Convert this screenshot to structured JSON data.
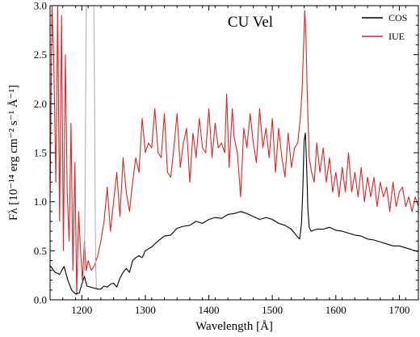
{
  "chart_data": {
    "type": "line",
    "title": "CU Vel",
    "xlabel": "Wavelength [Å]",
    "ylabel": "Fλ [10⁻¹⁴ erg cm⁻² s⁻¹ Å⁻¹]",
    "xlim": [
      1150,
      1730
    ],
    "ylim": [
      0.0,
      3.0
    ],
    "x_ticks": [
      1200,
      1300,
      1400,
      1500,
      1600,
      1700
    ],
    "y_ticks": [
      0.0,
      0.5,
      1.0,
      1.5,
      2.0,
      2.5,
      3.0
    ],
    "x_tick_labels": [
      "1200",
      "1300",
      "1400",
      "1500",
      "1600",
      "1700"
    ],
    "y_tick_labels": [
      "0.0",
      "0.5",
      "1.0",
      "1.5",
      "2.0",
      "2.5",
      "3.0"
    ],
    "legend": {
      "placement": "top-right",
      "entries": [
        "COS",
        "IUE"
      ]
    },
    "grid": false,
    "series": [
      {
        "name": "COS",
        "color": "#000000",
        "x": [
          1150,
          1158,
          1165,
          1172,
          1178,
          1184,
          1190,
          1196,
          1200,
          1204,
          1208,
          1225,
          1230,
          1235,
          1240,
          1245,
          1250,
          1255,
          1260,
          1265,
          1270,
          1275,
          1280,
          1285,
          1290,
          1295,
          1300,
          1310,
          1320,
          1330,
          1340,
          1350,
          1360,
          1370,
          1380,
          1390,
          1400,
          1410,
          1420,
          1430,
          1440,
          1450,
          1460,
          1470,
          1480,
          1490,
          1500,
          1510,
          1520,
          1530,
          1535,
          1540,
          1543,
          1546,
          1548,
          1550,
          1552,
          1554,
          1556,
          1558,
          1561,
          1565,
          1570,
          1580,
          1590,
          1600,
          1610,
          1620,
          1630,
          1640,
          1650,
          1660,
          1670,
          1680,
          1690,
          1700,
          1710,
          1720,
          1730
        ],
        "y": [
          0.35,
          0.28,
          0.26,
          0.34,
          0.2,
          0.1,
          0.06,
          0.07,
          0.16,
          0.24,
          0.14,
          0.11,
          0.11,
          0.14,
          0.13,
          0.16,
          0.17,
          0.13,
          0.22,
          0.28,
          0.32,
          0.28,
          0.4,
          0.43,
          0.45,
          0.43,
          0.5,
          0.54,
          0.6,
          0.65,
          0.66,
          0.73,
          0.75,
          0.76,
          0.8,
          0.78,
          0.82,
          0.84,
          0.83,
          0.87,
          0.88,
          0.9,
          0.88,
          0.85,
          0.82,
          0.84,
          0.82,
          0.78,
          0.76,
          0.72,
          0.68,
          0.64,
          0.62,
          0.78,
          1.12,
          1.62,
          1.7,
          1.38,
          0.92,
          0.74,
          0.7,
          0.71,
          0.72,
          0.72,
          0.74,
          0.71,
          0.7,
          0.68,
          0.66,
          0.65,
          0.62,
          0.61,
          0.59,
          0.57,
          0.55,
          0.55,
          0.53,
          0.51,
          0.49
        ]
      },
      {
        "name": "IUE",
        "color": "#d62728",
        "x": [
          1150,
          1153,
          1156,
          1159,
          1162,
          1165,
          1168,
          1171,
          1174,
          1177,
          1180,
          1183,
          1186,
          1189,
          1192,
          1195,
          1198,
          1201,
          1204,
          1207,
          1210,
          1215,
          1220,
          1225,
          1230,
          1235,
          1240,
          1245,
          1250,
          1255,
          1260,
          1265,
          1270,
          1275,
          1280,
          1285,
          1290,
          1295,
          1300,
          1305,
          1310,
          1315,
          1320,
          1325,
          1330,
          1335,
          1340,
          1345,
          1350,
          1355,
          1360,
          1365,
          1370,
          1375,
          1380,
          1385,
          1390,
          1395,
          1400,
          1405,
          1410,
          1415,
          1420,
          1425,
          1428,
          1432,
          1437,
          1440,
          1445,
          1450,
          1455,
          1460,
          1465,
          1470,
          1475,
          1480,
          1485,
          1490,
          1495,
          1500,
          1505,
          1510,
          1515,
          1520,
          1525,
          1530,
          1535,
          1540,
          1544,
          1547,
          1549,
          1551,
          1553,
          1555,
          1558,
          1562,
          1566,
          1570,
          1575,
          1580,
          1585,
          1590,
          1595,
          1600,
          1605,
          1610,
          1615,
          1620,
          1625,
          1630,
          1635,
          1640,
          1645,
          1650,
          1655,
          1660,
          1665,
          1670,
          1675,
          1680,
          1685,
          1690,
          1695,
          1700,
          1705,
          1710,
          1715,
          1720,
          1725,
          1730
        ],
        "y": [
          1.0,
          3.0,
          2.4,
          1.2,
          3.0,
          0.8,
          2.9,
          0.5,
          2.5,
          1.1,
          0.6,
          1.8,
          0.3,
          1.4,
          0.05,
          0.9,
          0.5,
          0.2,
          0.6,
          0.3,
          0.4,
          0.3,
          0.35,
          0.45,
          0.6,
          0.8,
          1.15,
          0.7,
          1.0,
          1.3,
          0.85,
          1.45,
          1.1,
          0.9,
          1.2,
          1.45,
          1.3,
          1.85,
          1.5,
          1.6,
          1.55,
          1.95,
          1.5,
          1.45,
          1.9,
          1.3,
          1.25,
          1.55,
          1.9,
          1.35,
          1.6,
          1.75,
          1.2,
          1.7,
          1.45,
          1.85,
          1.55,
          1.5,
          1.95,
          1.45,
          1.8,
          1.55,
          1.6,
          1.5,
          2.1,
          1.35,
          1.95,
          1.65,
          1.5,
          1.05,
          1.75,
          1.55,
          1.9,
          1.6,
          1.4,
          1.95,
          1.55,
          1.75,
          1.45,
          1.85,
          1.3,
          1.75,
          1.45,
          1.25,
          1.7,
          1.35,
          1.55,
          1.6,
          1.85,
          2.15,
          2.55,
          2.95,
          2.7,
          2.1,
          1.45,
          1.3,
          1.2,
          1.6,
          1.3,
          1.55,
          1.2,
          1.45,
          1.1,
          1.3,
          1.05,
          1.35,
          1.1,
          1.5,
          1.1,
          1.3,
          1.05,
          1.35,
          1.0,
          1.25,
          1.05,
          1.25,
          0.95,
          1.2,
          1.05,
          1.15,
          0.9,
          1.2,
          0.95,
          1.1,
          1.15,
          0.95,
          1.05,
          0.9,
          1.05,
          0.95
        ]
      },
      {
        "name": "",
        "color": "#b0b0b0",
        "x": [
          1204,
          1205,
          1206,
          1207,
          1208,
          1212,
          1216,
          1218,
          1219,
          1220,
          1221,
          1222,
          1223
        ],
        "y": [
          0.3,
          0.9,
          2.0,
          3.0,
          3.0,
          3.0,
          3.0,
          3.0,
          3.0,
          2.2,
          1.0,
          0.3,
          0.12
        ]
      }
    ]
  }
}
